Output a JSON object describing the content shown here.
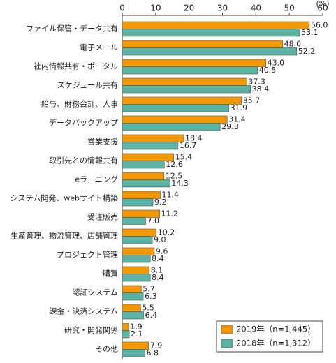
{
  "chart_data": {
    "type": "hbar",
    "unit": "(%)",
    "categories": [
      "ファイル保管・データ共有",
      "電子メール",
      "社内情報共有・ポータル",
      "スケジュール共有",
      "給与、財務会計、人事",
      "データバックアップ",
      "営業支援",
      "取引先との情報共有",
      "eラーニング",
      "システム開発、webサイト構築",
      "受注販売",
      "生産管理、物流管理、店舗管理",
      "プロジェクト管理",
      "購買",
      "認証システム",
      "課金・決済システム",
      "研究・開発関係",
      "その他"
    ],
    "series": [
      {
        "name": "2019年（n=1,445）",
        "color": "#f39800",
        "values": [
          56.0,
          48.0,
          43.0,
          37.3,
          35.7,
          31.4,
          18.4,
          15.4,
          12.5,
          11.4,
          11.2,
          10.2,
          9.6,
          8.1,
          5.7,
          5.5,
          1.9,
          7.9
        ],
        "value_labels": [
          "56.0",
          "48.0",
          "43.0",
          "37.3",
          "35.7",
          "31.4",
          "18.4",
          "15.4",
          "12.5",
          "11.4",
          "11.2",
          "10.2",
          "9.6",
          "8.1",
          "5.7",
          "5.5",
          "1.9",
          "7.9"
        ]
      },
      {
        "name": "2018年（n=1,312）",
        "color": "#5bb3a5",
        "values": [
          53.1,
          52.2,
          40.5,
          38.4,
          31.9,
          29.3,
          16.7,
          12.6,
          14.3,
          9.2,
          7.0,
          9.0,
          8.4,
          8.4,
          6.3,
          6.4,
          2.1,
          6.8
        ],
        "value_labels": [
          "53.1",
          "52.2",
          "40.5",
          "38.4",
          "31.9",
          "29.3",
          "16.7",
          "12.6",
          "14.3",
          "9.2",
          "7.0",
          "9.0",
          "8.4",
          "8.4",
          "6.3",
          "6.4",
          "2.1",
          "6.8"
        ]
      }
    ],
    "xlim": [
      0,
      60
    ],
    "xticks": [
      0,
      10,
      20,
      30,
      40,
      50,
      60
    ]
  }
}
